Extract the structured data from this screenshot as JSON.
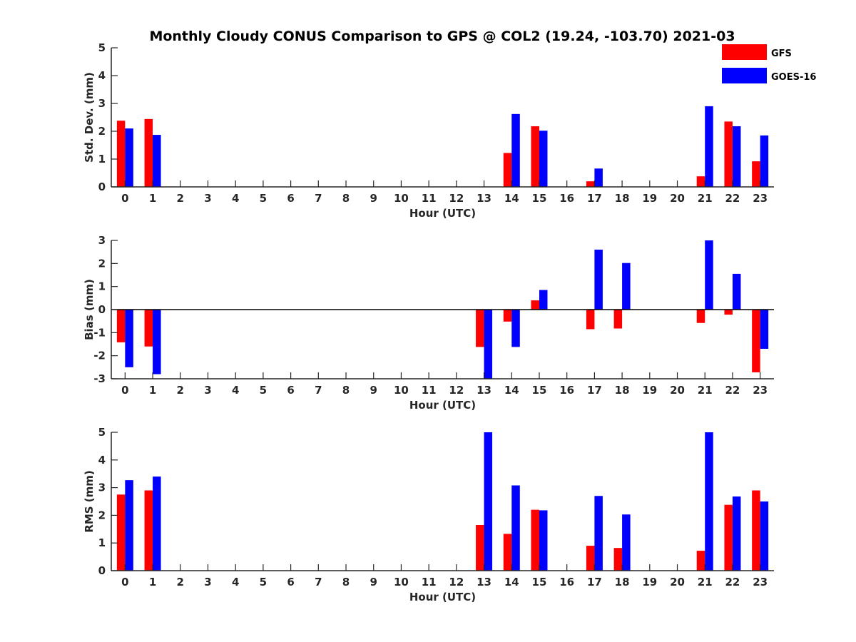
{
  "chart_data": {
    "title": "Monthly Cloudy CONUS Comparison to GPS @ COL2 (19.24, -103.70) 2021-03",
    "legend": [
      {
        "name": "GFS",
        "color": "#ff0000"
      },
      {
        "name": "GOES-16",
        "color": "#0000ff"
      }
    ],
    "hours": [
      "0",
      "1",
      "2",
      "3",
      "4",
      "5",
      "6",
      "7",
      "8",
      "9",
      "10",
      "11",
      "12",
      "13",
      "14",
      "15",
      "16",
      "17",
      "18",
      "19",
      "20",
      "21",
      "22",
      "23"
    ],
    "panels": [
      {
        "type": "bar",
        "xlabel": "Hour (UTC)",
        "ylabel": "Std. Dev. (mm)",
        "ylim": [
          0,
          5
        ],
        "yticks": [
          0,
          1,
          2,
          3,
          4,
          5
        ],
        "zero_line": false,
        "series": [
          {
            "name": "GFS",
            "values": [
              2.38,
              2.44,
              null,
              null,
              null,
              null,
              null,
              null,
              null,
              null,
              null,
              null,
              null,
              null,
              1.22,
              2.18,
              null,
              0.2,
              null,
              null,
              null,
              0.38,
              2.35,
              0.92
            ]
          },
          {
            "name": "GOES-16",
            "values": [
              2.1,
              1.87,
              null,
              null,
              null,
              null,
              null,
              null,
              null,
              null,
              null,
              null,
              null,
              null,
              2.62,
              2.02,
              null,
              0.66,
              null,
              null,
              null,
              2.9,
              2.18,
              1.85
            ]
          }
        ]
      },
      {
        "type": "bar",
        "xlabel": "Hour (UTC)",
        "ylabel": "Bias (mm)",
        "ylim": [
          -3,
          3
        ],
        "yticks": [
          -3,
          -2,
          -1,
          0,
          1,
          2,
          3
        ],
        "zero_line": true,
        "series": [
          {
            "name": "GFS",
            "values": [
              -1.42,
              -1.6,
              null,
              null,
              null,
              null,
              null,
              null,
              null,
              null,
              null,
              null,
              null,
              -1.62,
              -0.52,
              0.4,
              null,
              -0.85,
              -0.82,
              null,
              null,
              -0.58,
              -0.22,
              -2.72
            ]
          },
          {
            "name": "GOES-16",
            "values": [
              -2.5,
              -2.8,
              null,
              null,
              null,
              null,
              null,
              null,
              null,
              null,
              null,
              null,
              null,
              -3.0,
              -1.62,
              0.85,
              null,
              2.6,
              2.02,
              null,
              null,
              3.0,
              1.55,
              -1.7
            ]
          }
        ]
      },
      {
        "type": "bar",
        "xlabel": "Hour (UTC)",
        "ylabel": "RMS (mm)",
        "ylim": [
          0,
          5
        ],
        "yticks": [
          0,
          1,
          2,
          3,
          4,
          5
        ],
        "zero_line": false,
        "series": [
          {
            "name": "GFS",
            "values": [
              2.75,
              2.9,
              null,
              null,
              null,
              null,
              null,
              null,
              null,
              null,
              null,
              null,
              null,
              1.65,
              1.33,
              2.2,
              null,
              0.9,
              0.82,
              null,
              null,
              0.72,
              2.38,
              2.9
            ]
          },
          {
            "name": "GOES-16",
            "values": [
              3.27,
              3.4,
              null,
              null,
              null,
              null,
              null,
              null,
              null,
              null,
              null,
              null,
              null,
              5.0,
              3.08,
              2.18,
              null,
              2.7,
              2.03,
              null,
              null,
              5.0,
              2.68,
              2.5
            ]
          }
        ]
      }
    ]
  }
}
